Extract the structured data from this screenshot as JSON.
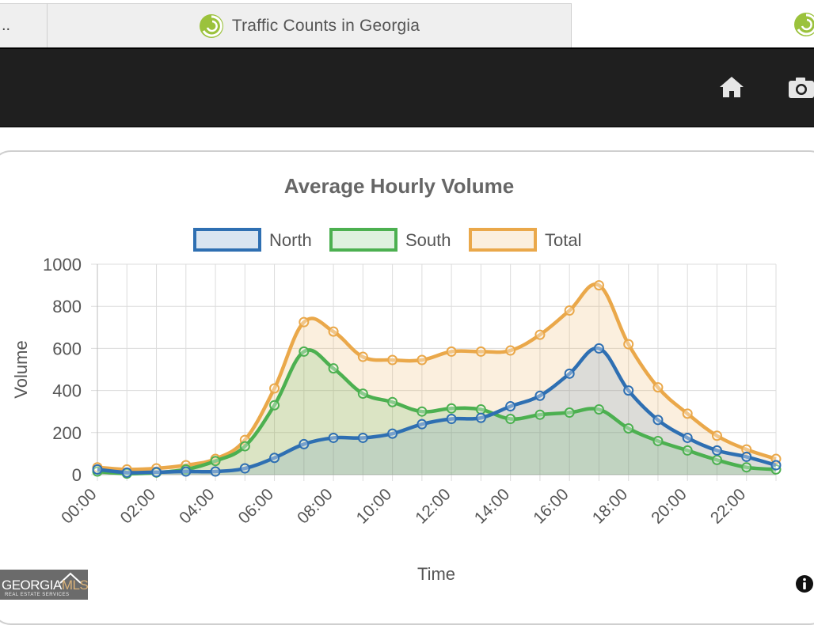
{
  "tabs": {
    "left_label": "..",
    "active_title": "Traffic Counts in Georgia"
  },
  "toolbar": {
    "icons": [
      "home-icon",
      "camera-icon"
    ]
  },
  "footer": {
    "logo_text_main": "GEORGIA",
    "logo_text_accent": "MLS",
    "logo_subtext": "REAL ESTATE SERVICES"
  },
  "colors": {
    "north": "#2e6fb2",
    "south": "#4cb050",
    "total": "#eaa84a",
    "toolbar_bg": "#1f1f1f"
  },
  "chart_data": {
    "type": "area",
    "title": "Average Hourly Volume",
    "xlabel": "Time",
    "ylabel": "Volume",
    "ylim": [
      0,
      1000
    ],
    "yticks": [
      0,
      200,
      400,
      600,
      800,
      1000
    ],
    "x": [
      "00:00",
      "01:00",
      "02:00",
      "03:00",
      "04:00",
      "05:00",
      "06:00",
      "07:00",
      "08:00",
      "09:00",
      "10:00",
      "11:00",
      "12:00",
      "13:00",
      "14:00",
      "15:00",
      "16:00",
      "17:00",
      "18:00",
      "19:00",
      "20:00",
      "21:00",
      "22:00",
      "23:00"
    ],
    "xtick_labels": [
      "00:00",
      "02:00",
      "04:00",
      "06:00",
      "08:00",
      "10:00",
      "12:00",
      "14:00",
      "16:00",
      "18:00",
      "20:00",
      "22:00"
    ],
    "grid": true,
    "legend_position": "top",
    "series": [
      {
        "name": "North",
        "color": "#2e6fb2",
        "values": [
          25,
          10,
          12,
          15,
          15,
          30,
          80,
          145,
          175,
          175,
          195,
          240,
          265,
          270,
          325,
          375,
          480,
          600,
          400,
          260,
          175,
          115,
          85,
          45
        ]
      },
      {
        "name": "South",
        "color": "#4cb050",
        "values": [
          15,
          5,
          10,
          25,
          65,
          135,
          330,
          585,
          505,
          385,
          345,
          300,
          315,
          310,
          265,
          285,
          295,
          310,
          220,
          160,
          115,
          70,
          35,
          25
        ]
      },
      {
        "name": "Total",
        "color": "#eaa84a",
        "values": [
          35,
          25,
          30,
          45,
          75,
          165,
          410,
          725,
          680,
          560,
          545,
          545,
          585,
          585,
          590,
          665,
          780,
          900,
          620,
          415,
          290,
          185,
          120,
          75
        ]
      }
    ]
  }
}
